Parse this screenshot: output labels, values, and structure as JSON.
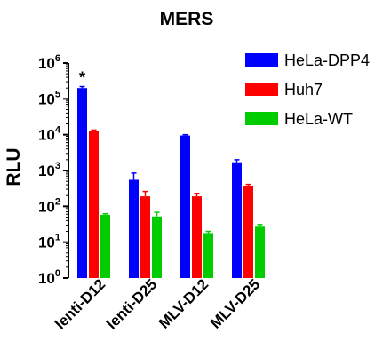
{
  "chart_data": {
    "type": "bar",
    "title": "MERS",
    "ylabel": "RLU",
    "xlabel": "",
    "yscale": "log",
    "ylim": [
      1,
      1000000
    ],
    "yticks": [
      {
        "base": "10",
        "exp": "0",
        "value": 1
      },
      {
        "base": "10",
        "exp": "1",
        "value": 10
      },
      {
        "base": "10",
        "exp": "2",
        "value": 100
      },
      {
        "base": "10",
        "exp": "3",
        "value": 1000
      },
      {
        "base": "10",
        "exp": "4",
        "value": 10000
      },
      {
        "base": "10",
        "exp": "5",
        "value": 100000
      },
      {
        "base": "10",
        "exp": "6",
        "value": 1000000
      }
    ],
    "categories": [
      "lenti-D12",
      "lenti-D25",
      "MLV-D12",
      "MLV-D25"
    ],
    "series": [
      {
        "name": "HeLa-DPP4",
        "color": "#0000ff",
        "values": [
          200000,
          550,
          9500,
          1700
        ],
        "errors": [
          220000,
          850,
          10000,
          2000
        ]
      },
      {
        "name": "Huh7",
        "color": "#ff0000",
        "values": [
          13000,
          190,
          190,
          370
        ],
        "errors": [
          13500,
          260,
          230,
          410
        ]
      },
      {
        "name": "HeLa-WT",
        "color": "#00cc00",
        "values": [
          58,
          52,
          18,
          27
        ],
        "errors": [
          62,
          68,
          20,
          31
        ]
      }
    ],
    "annotations": [
      {
        "text": "*",
        "category": "lenti-D12",
        "series": "HeLa-DPP4"
      }
    ],
    "legend_position": "top-right",
    "grid": false
  }
}
